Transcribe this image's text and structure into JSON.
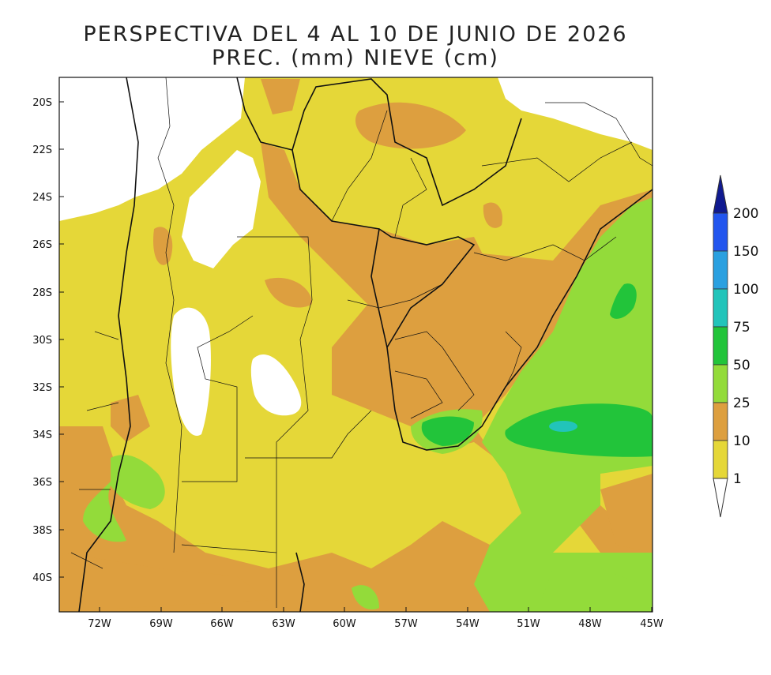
{
  "title": {
    "line1": "PERSPECTIVA DEL 4 AL 10 DE JUNIO DE 2026",
    "line2": "PREC. (mm) NIEVE (cm)"
  },
  "map": {
    "lat_labels": [
      "20S",
      "22S",
      "24S",
      "26S",
      "28S",
      "30S",
      "32S",
      "34S",
      "36S",
      "38S",
      "40S"
    ],
    "lon_labels": [
      "72W",
      "69W",
      "66W",
      "63W",
      "60W",
      "57W",
      "54W",
      "51W",
      "48W",
      "45W"
    ]
  },
  "legend": {
    "labels": [
      "200",
      "150",
      "100",
      "75",
      "50",
      "25",
      "10",
      "1"
    ],
    "colors": {
      "lt1": "#ffffff",
      "c1_10": "#e5d738",
      "c10_25": "#dd9f3f",
      "c25_50": "#93db3a",
      "c50_75": "#22c43a",
      "c75_100": "#22c4ba",
      "c100_150": "#2aa0e0",
      "c150_200": "#2255ee",
      "gt200": "#101a90"
    }
  }
}
